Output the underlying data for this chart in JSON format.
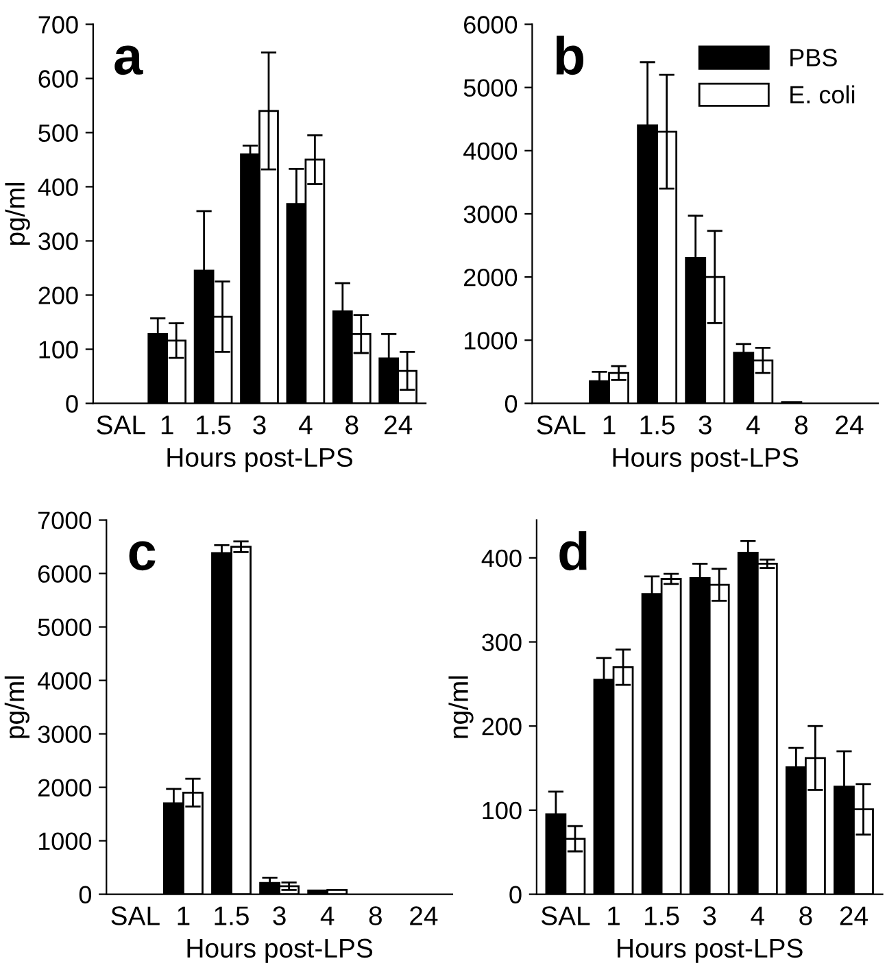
{
  "chart_data": [
    {
      "type": "bar",
      "title": "a",
      "xlabel": "Hours post-LPS",
      "ylabel": "pg/ml",
      "categories": [
        "SAL",
        "1",
        "1.5",
        "3",
        "4",
        "8",
        "24"
      ],
      "ylim": [
        0,
        700
      ],
      "yticks": [
        0,
        100,
        200,
        300,
        400,
        500,
        600,
        700
      ],
      "legend": false,
      "series": [
        {
          "color": "#000000",
          "values": [
            0,
            128,
            245,
            460,
            368,
            170,
            83
          ],
          "errors": [
            null,
            29,
            110,
            16,
            65,
            52,
            45
          ]
        },
        {
          "color": "#ffffff",
          "values": [
            0,
            116,
            160,
            540,
            450,
            128,
            60
          ],
          "errors": [
            null,
            32,
            65,
            108,
            45,
            35,
            35
          ]
        }
      ]
    },
    {
      "type": "bar",
      "title": "b",
      "xlabel": "Hours post-LPS",
      "categories": [
        "SAL",
        "1",
        "1.5",
        "3",
        "4",
        "8",
        "24"
      ],
      "ylim": [
        0,
        6000
      ],
      "yticks": [
        0,
        1000,
        2000,
        3000,
        4000,
        5000,
        6000
      ],
      "legend": "top right",
      "series": [
        {
          "name": "PBS",
          "color": "#000000",
          "values": [
            0,
            350,
            4400,
            2300,
            800,
            20,
            0
          ],
          "errors": [
            null,
            150,
            1000,
            670,
            140,
            null,
            null
          ]
        },
        {
          "name": "E. coli",
          "color": "#ffffff",
          "values": [
            0,
            480,
            4300,
            2000,
            680,
            0,
            0
          ],
          "errors": [
            null,
            110,
            900,
            730,
            200,
            null,
            null
          ]
        }
      ]
    },
    {
      "type": "bar",
      "title": "c",
      "xlabel": "Hours post-LPS",
      "ylabel": "pg/ml",
      "categories": [
        "SAL",
        "1",
        "1.5",
        "3",
        "4",
        "8",
        "24"
      ],
      "ylim": [
        0,
        7000
      ],
      "yticks": [
        0,
        1000,
        2000,
        3000,
        4000,
        5000,
        6000,
        7000
      ],
      "legend": false,
      "series": [
        {
          "color": "#000000",
          "values": [
            0,
            1700,
            6380,
            210,
            70,
            0,
            0
          ],
          "errors": [
            null,
            270,
            150,
            100,
            null,
            null,
            null
          ]
        },
        {
          "color": "#ffffff",
          "values": [
            0,
            1900,
            6500,
            150,
            80,
            0,
            0
          ],
          "errors": [
            null,
            260,
            100,
            70,
            null,
            null,
            null
          ]
        }
      ]
    },
    {
      "type": "bar",
      "title": "d",
      "xlabel": "Hours post-LPS",
      "ylabel": "ng/ml",
      "categories": [
        "SAL",
        "1",
        "1.5",
        "3",
        "4",
        "8",
        "24"
      ],
      "ylim": [
        0,
        445
      ],
      "yticks": [
        0,
        100,
        200,
        300,
        400
      ],
      "legend": false,
      "series": [
        {
          "color": "#000000",
          "values": [
            95,
            255,
            357,
            376,
            406,
            151,
            128
          ],
          "errors": [
            27,
            26,
            21,
            17,
            14,
            23,
            42
          ]
        },
        {
          "color": "#ffffff",
          "values": [
            66,
            270,
            375,
            368,
            393,
            162,
            101
          ],
          "errors": [
            15,
            21,
            6,
            19,
            5,
            38,
            30
          ]
        }
      ]
    }
  ]
}
